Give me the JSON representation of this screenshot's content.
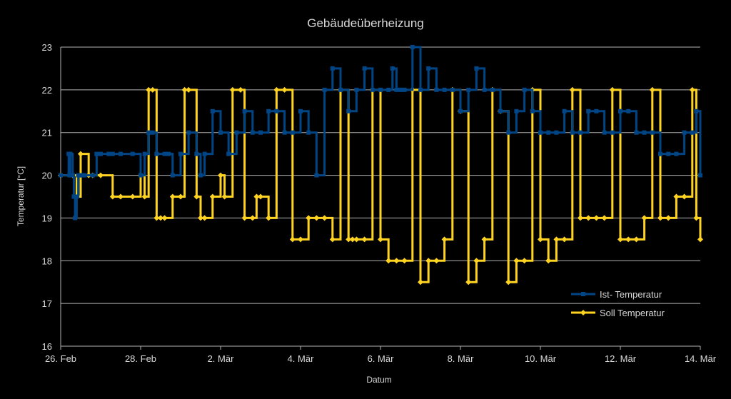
{
  "chart_data": {
    "type": "line",
    "title": "Gebäudeüberheizung",
    "xlabel": "Datum",
    "ylabel": "Temperatur [°C]",
    "ylim": [
      16,
      23
    ],
    "yticks": [
      16,
      17,
      18,
      19,
      20,
      21,
      22,
      23
    ],
    "xlim_days": [
      0,
      16
    ],
    "xticks": [
      {
        "day": 0,
        "label": "26. Feb"
      },
      {
        "day": 2,
        "label": "28. Feb"
      },
      {
        "day": 4,
        "label": "2. Mär"
      },
      {
        "day": 6,
        "label": "4. Mär"
      },
      {
        "day": 8,
        "label": "6. Mär"
      },
      {
        "day": 10,
        "label": "8. Mär"
      },
      {
        "day": 12,
        "label": "10. Mär"
      },
      {
        "day": 14,
        "label": "12. Mär"
      },
      {
        "day": 16,
        "label": "14. Mär"
      }
    ],
    "grid": true,
    "legend_position": "right",
    "background": "#000000",
    "series": [
      {
        "name": "Ist- Temperatur",
        "color": "#004586",
        "marker": "square",
        "x": [
          0,
          0.2,
          0.22,
          0.24,
          0.3,
          0.33,
          0.36,
          0.4,
          0.44,
          0.46,
          0.5,
          0.55,
          0.6,
          0.8,
          0.9,
          1.0,
          1.2,
          1.3,
          1.5,
          1.8,
          2.0,
          2.1,
          2.2,
          2.3,
          2.4,
          2.6,
          2.7,
          2.8,
          3.0,
          3.2,
          3.4,
          3.5,
          3.6,
          3.8,
          4.0,
          4.2,
          4.4,
          4.6,
          4.8,
          5.0,
          5.2,
          5.4,
          5.6,
          5.8,
          6.0,
          6.2,
          6.4,
          6.6,
          6.8,
          7.0,
          7.2,
          7.4,
          7.6,
          7.8,
          8.0,
          8.2,
          8.3,
          8.4,
          8.5,
          8.6,
          8.8,
          9.0,
          9.2,
          9.4,
          9.6,
          9.8,
          10.0,
          10.2,
          10.4,
          10.6,
          10.8,
          11.0,
          11.2,
          11.4,
          11.6,
          11.8,
          12.0,
          12.2,
          12.4,
          12.6,
          12.8,
          13.0,
          13.2,
          13.4,
          13.6,
          13.8,
          14.0,
          14.2,
          14.4,
          14.6,
          14.8,
          15.0,
          15.2,
          15.4,
          15.6,
          15.8,
          15.9,
          16.0
        ],
        "y": [
          20.0,
          20.5,
          20.0,
          20.5,
          20.0,
          19.5,
          19.0,
          19.5,
          20.0,
          20.0,
          20.0,
          20.0,
          20.0,
          20.0,
          20.5,
          20.5,
          20.5,
          20.5,
          20.5,
          20.5,
          20.0,
          20.5,
          21.0,
          21.0,
          20.5,
          20.5,
          20.5,
          20.0,
          20.5,
          21.0,
          20.5,
          20.0,
          20.5,
          21.5,
          21.0,
          20.5,
          21.0,
          21.5,
          21.0,
          21.0,
          21.5,
          21.5,
          21.0,
          21.0,
          21.5,
          21.0,
          20.0,
          22.0,
          22.5,
          22.0,
          21.5,
          22.0,
          22.5,
          22.0,
          22.0,
          22.0,
          22.5,
          22.0,
          22.0,
          22.0,
          23.0,
          22.0,
          22.5,
          22.0,
          22.0,
          22.0,
          21.5,
          22.0,
          22.5,
          22.0,
          22.0,
          21.5,
          21.0,
          21.5,
          22.0,
          21.5,
          21.0,
          21.0,
          21.0,
          21.5,
          21.0,
          21.0,
          21.5,
          21.5,
          21.0,
          21.0,
          21.5,
          21.5,
          21.0,
          21.0,
          21.0,
          20.5,
          20.5,
          20.5,
          21.0,
          21.0,
          21.5,
          20.0
        ]
      },
      {
        "name": "Soll Temperatur",
        "color": "#ffd320",
        "marker": "diamond",
        "x": [
          0,
          0.3,
          0.4,
          0.5,
          0.7,
          0.8,
          1.0,
          1.3,
          1.5,
          1.8,
          2.0,
          2.1,
          2.2,
          2.3,
          2.4,
          2.5,
          2.6,
          2.8,
          3.0,
          3.1,
          3.2,
          3.4,
          3.5,
          3.6,
          3.8,
          4.0,
          4.1,
          4.3,
          4.5,
          4.6,
          4.8,
          4.9,
          5.0,
          5.2,
          5.4,
          5.6,
          5.8,
          6.0,
          6.2,
          6.4,
          6.6,
          6.8,
          7.0,
          7.2,
          7.3,
          7.4,
          7.6,
          7.8,
          8.0,
          8.2,
          8.4,
          8.6,
          8.8,
          9.0,
          9.2,
          9.4,
          9.6,
          9.8,
          10.0,
          10.2,
          10.4,
          10.6,
          10.8,
          11.0,
          11.2,
          11.4,
          11.6,
          11.8,
          12.0,
          12.2,
          12.4,
          12.6,
          12.8,
          13.0,
          13.2,
          13.4,
          13.6,
          13.8,
          14.0,
          14.2,
          14.4,
          14.6,
          14.8,
          15.0,
          15.2,
          15.4,
          15.6,
          15.8,
          15.9,
          16.0
        ],
        "y": [
          20.0,
          20.0,
          19.5,
          20.5,
          20.0,
          20.0,
          20.0,
          19.5,
          19.5,
          19.5,
          20.0,
          19.5,
          22.0,
          22.0,
          19.0,
          19.0,
          19.0,
          19.5,
          19.5,
          22.0,
          22.0,
          19.5,
          19.0,
          19.0,
          19.5,
          20.0,
          19.5,
          22.0,
          22.0,
          19.0,
          19.0,
          19.5,
          19.5,
          19.0,
          22.0,
          22.0,
          18.5,
          18.5,
          19.0,
          19.0,
          19.0,
          18.5,
          22.0,
          18.5,
          18.5,
          18.5,
          18.5,
          22.0,
          18.5,
          18.0,
          18.0,
          18.0,
          22.0,
          17.5,
          18.0,
          18.0,
          18.5,
          22.0,
          21.5,
          17.5,
          18.0,
          18.5,
          22.0,
          21.5,
          17.5,
          18.0,
          18.0,
          22.0,
          18.5,
          18.0,
          18.5,
          18.5,
          22.0,
          19.0,
          19.0,
          19.0,
          19.0,
          22.0,
          18.5,
          18.5,
          18.5,
          19.0,
          22.0,
          19.0,
          19.0,
          19.5,
          19.5,
          22.0,
          19.0,
          18.5
        ]
      }
    ]
  }
}
